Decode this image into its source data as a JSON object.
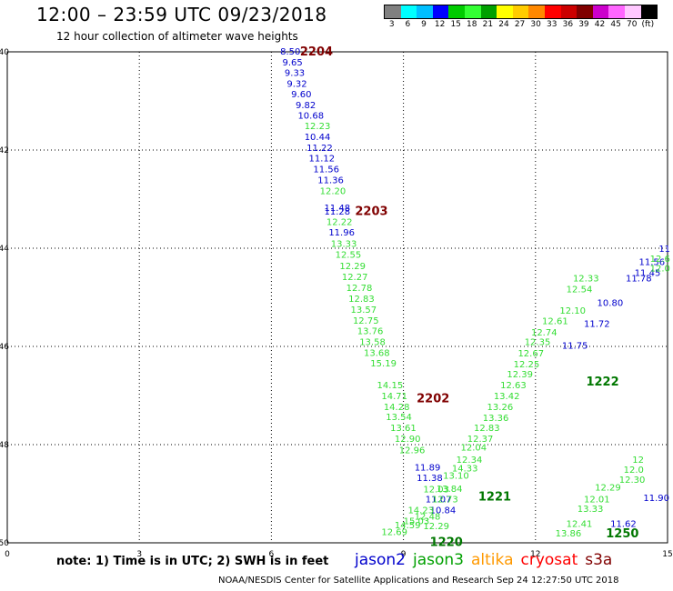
{
  "header": {
    "title": "12:00 – 23:59 UTC 09/23/2018",
    "subtitle": "12 hour collection of altimeter wave heights"
  },
  "legend": {
    "colors": [
      "#808080",
      "#00ffff",
      "#00bfff",
      "#0000ff",
      "#00cc00",
      "#33ff33",
      "#00a000",
      "#ffff00",
      "#ffcc00",
      "#ff8800",
      "#ff0000",
      "#cc0000",
      "#800000",
      "#cc00cc",
      "#ff66ff",
      "#ffc8ff",
      "#000000"
    ],
    "labels": [
      "3",
      "6",
      "9",
      "12",
      "15",
      "18",
      "21",
      "24",
      "27",
      "30",
      "33",
      "36",
      "39",
      "42",
      "45",
      "70",
      "(ft)"
    ]
  },
  "footer": {
    "note": "note: 1) Time is in UTC; 2) SWH is in feet",
    "credit": "NOAA/NESDIS Center for Satellite Applications and Research    Sep 24 12:27:50 UTC 2018",
    "satellites": [
      {
        "name": "jason2",
        "color": "#0000cc"
      },
      {
        "name": "jason3",
        "color": "#00a000"
      },
      {
        "name": "altika",
        "color": "#ff9900"
      },
      {
        "name": "cryosat",
        "color": "#ff0000"
      },
      {
        "name": "s3a",
        "color": "#800000"
      }
    ]
  },
  "chart_data": {
    "type": "scatter",
    "title": "12 hour collection of altimeter wave heights",
    "xlim": [
      0,
      15
    ],
    "ylim": [
      -50,
      -40
    ],
    "x_ticks": [
      0,
      3,
      6,
      9,
      12,
      15
    ],
    "y_ticks": [
      -40,
      -42,
      -44,
      -46,
      -48,
      -50
    ],
    "y_tick_labels": [
      "-40",
      "-42",
      "-44",
      "-46",
      "-48",
      "-50"
    ],
    "grid": true,
    "pass_labels": [
      {
        "label": "2204",
        "x": 6.65,
        "y": -39.98,
        "color": "#800000"
      },
      {
        "label": "2203",
        "x": 7.9,
        "y": -43.23,
        "color": "#800000"
      },
      {
        "label": "2202",
        "x": 9.3,
        "y": -47.05,
        "color": "#800000"
      },
      {
        "label": "1222",
        "x": 13.15,
        "y": -46.7,
        "color": "#007700"
      },
      {
        "label": "1221",
        "x": 10.7,
        "y": -49.05,
        "color": "#007700"
      },
      {
        "label": "1220",
        "x": 9.6,
        "y": -49.97,
        "color": "#007700"
      },
      {
        "label": "1250",
        "x": 13.6,
        "y": -49.8,
        "color": "#007700"
      }
    ],
    "series": [
      {
        "name": "jason2",
        "color": "#0000cc",
        "points": [
          [
            6.2,
            -39.98,
            "8.50"
          ],
          [
            6.25,
            -40.2,
            "9.65"
          ],
          [
            6.3,
            -40.42,
            "9.33"
          ],
          [
            6.35,
            -40.64,
            "9.32"
          ],
          [
            6.45,
            -40.85,
            "9.60"
          ],
          [
            6.55,
            -41.07,
            "9.82"
          ],
          [
            6.6,
            -41.29,
            "10.68"
          ],
          [
            6.75,
            -41.72,
            "10.44"
          ],
          [
            6.8,
            -41.94,
            "11.22"
          ],
          [
            6.85,
            -42.16,
            "11.12"
          ],
          [
            6.95,
            -42.38,
            "11.56"
          ],
          [
            7.05,
            -42.6,
            "11.36"
          ],
          [
            7.2,
            -43.17,
            "11.48"
          ],
          [
            7.2,
            -43.24,
            "11.28"
          ],
          [
            7.3,
            -43.67,
            "11.96"
          ],
          [
            9.25,
            -48.45,
            "11.89"
          ],
          [
            9.3,
            -48.67,
            "11.38"
          ],
          [
            9.5,
            -49.1,
            "11.07"
          ],
          [
            9.6,
            -49.32,
            "10.84"
          ],
          [
            14.35,
            -44.27,
            "11.56"
          ],
          [
            14.25,
            -44.49,
            "11.45"
          ],
          [
            14.05,
            -44.6,
            "11.78"
          ],
          [
            13.4,
            -45.1,
            "10.80"
          ],
          [
            13.1,
            -45.53,
            "11.72"
          ],
          [
            12.6,
            -45.97,
            "11.75"
          ],
          [
            13.7,
            -49.6,
            "11.62"
          ],
          [
            14.45,
            -49.07,
            "11.90"
          ],
          [
            14.8,
            -44.0,
            "11"
          ]
        ]
      },
      {
        "name": "jason3",
        "color": "#33dd33",
        "points": [
          [
            6.75,
            -41.5,
            "12.23"
          ],
          [
            7.1,
            -42.82,
            "12.20"
          ],
          [
            7.25,
            -43.45,
            "12.22"
          ],
          [
            7.35,
            -43.9,
            "13.33"
          ],
          [
            7.45,
            -44.12,
            "12.55"
          ],
          [
            7.55,
            -44.35,
            "12.29"
          ],
          [
            7.6,
            -44.57,
            "12.27"
          ],
          [
            7.7,
            -44.8,
            "12.78"
          ],
          [
            7.75,
            -45.02,
            "12.83"
          ],
          [
            7.8,
            -45.24,
            "13.57"
          ],
          [
            7.85,
            -45.46,
            "12.75"
          ],
          [
            7.95,
            -45.68,
            "13.76"
          ],
          [
            8.0,
            -45.9,
            "13.58"
          ],
          [
            8.1,
            -46.12,
            "13.68"
          ],
          [
            8.25,
            -46.33,
            "15.19"
          ],
          [
            8.4,
            -46.78,
            "14.15"
          ],
          [
            8.5,
            -47.0,
            "14.71"
          ],
          [
            8.55,
            -47.22,
            "14.28"
          ],
          [
            8.6,
            -47.43,
            "13.54"
          ],
          [
            8.7,
            -47.65,
            "13.61"
          ],
          [
            8.8,
            -47.87,
            "12.90"
          ],
          [
            8.9,
            -48.1,
            "12.96"
          ],
          [
            9.45,
            -48.9,
            "12.03"
          ],
          [
            9.0,
            -49.55,
            "15.03"
          ],
          [
            8.5,
            -49.77,
            "12.69"
          ],
          [
            8.8,
            -49.63,
            "14.59"
          ],
          [
            9.1,
            -49.32,
            "14.23"
          ],
          [
            9.25,
            -49.45,
            "12.48"
          ],
          [
            9.45,
            -49.65,
            "12.29"
          ],
          [
            9.65,
            -49.1,
            "12.73"
          ],
          [
            9.75,
            -48.89,
            "13.84"
          ],
          [
            9.9,
            -48.62,
            "13.10"
          ],
          [
            10.1,
            -48.47,
            "14.33"
          ],
          [
            10.2,
            -48.3,
            "12.34"
          ],
          [
            10.3,
            -48.05,
            "12.04"
          ],
          [
            10.45,
            -47.87,
            "12.37"
          ],
          [
            10.6,
            -47.65,
            "12.83"
          ],
          [
            10.8,
            -47.44,
            "13.36"
          ],
          [
            10.9,
            -47.22,
            "13.26"
          ],
          [
            11.05,
            -47.0,
            "13.42"
          ],
          [
            11.2,
            -46.78,
            "12.63"
          ],
          [
            11.35,
            -46.56,
            "12.39"
          ],
          [
            11.5,
            -46.35,
            "12.25"
          ],
          [
            11.6,
            -46.13,
            "12.67"
          ],
          [
            11.75,
            -45.9,
            "12.35"
          ],
          [
            11.9,
            -45.7,
            "12.74"
          ],
          [
            12.15,
            -45.47,
            "12.61"
          ],
          [
            12.55,
            -45.26,
            "12.10"
          ],
          [
            12.7,
            -44.82,
            "12.54"
          ],
          [
            12.85,
            -44.6,
            "12.33"
          ],
          [
            14.6,
            -44.2,
            "12.6"
          ],
          [
            14.6,
            -44.4,
            "12.0"
          ],
          [
            12.45,
            -49.8,
            "13.86"
          ],
          [
            12.7,
            -49.6,
            "12.41"
          ],
          [
            12.95,
            -49.3,
            "13.33"
          ],
          [
            13.1,
            -49.1,
            "12.01"
          ],
          [
            13.35,
            -48.86,
            "12.29"
          ],
          [
            13.9,
            -48.7,
            "12.30"
          ],
          [
            14.0,
            -48.5,
            "12.0"
          ],
          [
            14.2,
            -48.3,
            "12"
          ]
        ]
      },
      {
        "name": "altika",
        "color": "#ff9900",
        "points": []
      },
      {
        "name": "cryosat",
        "color": "#ff0000",
        "points": []
      },
      {
        "name": "s3a",
        "color": "#800000",
        "points": []
      }
    ]
  }
}
